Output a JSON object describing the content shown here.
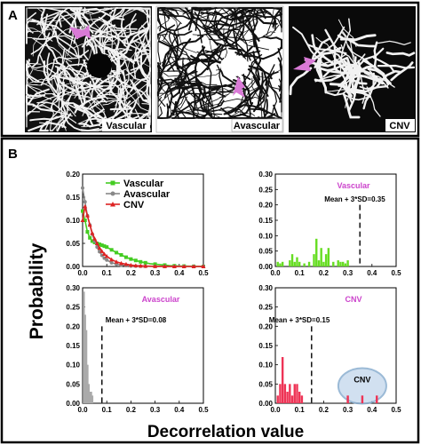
{
  "panel_a": {
    "label": "A",
    "images": [
      {
        "name": "vascular",
        "caption": "Vascular",
        "background": "#111111",
        "vessel_color": "#f2f2f2",
        "arrow_color": "#d97ad6"
      },
      {
        "name": "avascular",
        "caption": "Avascular",
        "background": "#ffffff",
        "vessel_color": "#111111",
        "arrow_color": "#d97ad6"
      },
      {
        "name": "cnv",
        "caption": "CNV",
        "background": "#0a0a0a",
        "vessel_color": "#f2f2f2",
        "arrow_color": "#d97ad6"
      }
    ]
  },
  "panel_b": {
    "label": "B",
    "ylabel": "Probability",
    "xlabel": "Decorrelation value"
  },
  "chart_data": [
    {
      "type": "line",
      "position": "top-left",
      "title": "",
      "x": [
        0.0,
        0.01,
        0.02,
        0.03,
        0.04,
        0.05,
        0.06,
        0.07,
        0.08,
        0.09,
        0.1,
        0.12,
        0.14,
        0.16,
        0.18,
        0.2,
        0.22,
        0.24,
        0.26,
        0.28,
        0.3,
        0.32,
        0.34,
        0.36,
        0.38,
        0.4,
        0.42,
        0.44,
        0.46,
        0.48,
        0.5
      ],
      "series": [
        {
          "name": "Vascular",
          "color": "#44cc22",
          "marker": "square",
          "values": [
            0.12,
            0.1,
            0.075,
            0.062,
            0.055,
            0.052,
            0.05,
            0.048,
            0.046,
            0.044,
            0.042,
            0.036,
            0.03,
            0.025,
            0.02,
            0.016,
            0.013,
            0.01,
            0.008,
            0.006,
            0.005,
            0.004,
            0.003,
            0.002,
            0.0015,
            0.001,
            0.0008,
            0.0005,
            0.0003,
            0.0002,
            0.0001
          ]
        },
        {
          "name": "Avascular",
          "color": "#888888",
          "marker": "circle",
          "values": [
            0.17,
            0.14,
            0.11,
            0.09,
            0.07,
            0.055,
            0.042,
            0.032,
            0.024,
            0.018,
            0.014,
            0.008,
            0.005,
            0.003,
            0.002,
            0.001,
            0.0008,
            0.0005,
            0.0003,
            0.0002,
            0.0001,
            0.0001,
            0.0,
            0.0,
            0.0,
            0.0,
            0.0,
            0.0,
            0.0,
            0.0,
            0.0
          ]
        },
        {
          "name": "CNV",
          "color": "#dd2222",
          "marker": "triangle",
          "values": [
            0.1,
            0.13,
            0.11,
            0.09,
            0.072,
            0.06,
            0.05,
            0.04,
            0.033,
            0.027,
            0.022,
            0.015,
            0.01,
            0.007,
            0.005,
            0.003,
            0.002,
            0.0015,
            0.001,
            0.0006,
            0.0004,
            0.0003,
            0.0002,
            0.0001,
            0.0001,
            0.0,
            0.0,
            0.0,
            0.0,
            0.0,
            0.0
          ]
        }
      ],
      "xlim": [
        0,
        0.5
      ],
      "ylim": [
        0,
        0.2
      ],
      "xticks": [
        "0.0",
        "0.1",
        "0.2",
        "0.3",
        "0.4",
        "0.5"
      ],
      "yticks": [
        "0.00",
        "0.05",
        "0.10",
        "0.15",
        "0.20"
      ],
      "legend": "top-right"
    },
    {
      "type": "bar",
      "position": "top-right",
      "title": "Vascular",
      "title_color": "#cc44cc",
      "color": "#66dd22",
      "x": [
        0.01,
        0.02,
        0.03,
        0.06,
        0.07,
        0.08,
        0.09,
        0.1,
        0.12,
        0.14,
        0.16,
        0.17,
        0.18,
        0.19,
        0.2,
        0.21,
        0.22,
        0.24,
        0.26,
        0.27,
        0.28,
        0.29,
        0.3
      ],
      "values": [
        0.015,
        0.01,
        0.015,
        0.02,
        0.04,
        0.015,
        0.03,
        0.015,
        0.01,
        0.015,
        0.04,
        0.09,
        0.02,
        0.06,
        0.015,
        0.04,
        0.06,
        0.015,
        0.02,
        0.015,
        0.015,
        0.01,
        0.02
      ],
      "threshold": {
        "x": 0.35,
        "label": "Mean + 3*SD=0.35"
      },
      "xlim": [
        0,
        0.5
      ],
      "ylim": [
        0,
        0.3
      ],
      "xticks": [
        "0.0",
        "0.1",
        "0.2",
        "0.3",
        "0.4",
        "0.5"
      ],
      "yticks": [
        "0.00",
        "0.05",
        "0.10",
        "0.15",
        "0.20",
        "0.25",
        "0.30"
      ]
    },
    {
      "type": "bar",
      "position": "bottom-left",
      "title": "Avascular",
      "title_color": "#cc44cc",
      "color": "#aaaaaa",
      "x": [
        0.005,
        0.01,
        0.015,
        0.02,
        0.025,
        0.03,
        0.035,
        0.04
      ],
      "values": [
        0.29,
        0.23,
        0.19,
        0.1,
        0.05,
        0.03,
        0.03,
        0.02
      ],
      "threshold": {
        "x": 0.08,
        "label": "Mean + 3*SD=0.08"
      },
      "xlim": [
        0,
        0.5
      ],
      "ylim": [
        0,
        0.3
      ],
      "xticks": [
        "0.0",
        "0.1",
        "0.2",
        "0.3",
        "0.4",
        "0.5"
      ],
      "yticks": [
        "0.00",
        "0.05",
        "0.10",
        "0.15",
        "0.20",
        "0.25",
        "0.30"
      ]
    },
    {
      "type": "bar",
      "position": "bottom-right",
      "title": "CNV",
      "title_color": "#cc44cc",
      "color": "#ee3355",
      "x": [
        0.01,
        0.02,
        0.03,
        0.04,
        0.05,
        0.06,
        0.07,
        0.08,
        0.09,
        0.1,
        0.11,
        0.3,
        0.36,
        0.42
      ],
      "values": [
        0.02,
        0.05,
        0.12,
        0.05,
        0.03,
        0.05,
        0.02,
        0.05,
        0.05,
        0.03,
        0.02,
        0.02,
        0.02,
        0.02
      ],
      "threshold": {
        "x": 0.15,
        "label": "Mean + 3*SD=0.15"
      },
      "annotation": {
        "label": "CNV",
        "fill": "#c9dbee",
        "stroke": "#8aaed0"
      },
      "xlim": [
        0,
        0.5
      ],
      "ylim": [
        0,
        0.3
      ],
      "xticks": [
        "0.0",
        "0.1",
        "0.2",
        "0.3",
        "0.4",
        "0.5"
      ],
      "yticks": [
        "0.00",
        "0.05",
        "0.10",
        "0.15",
        "0.20",
        "0.25",
        "0.30"
      ]
    }
  ]
}
